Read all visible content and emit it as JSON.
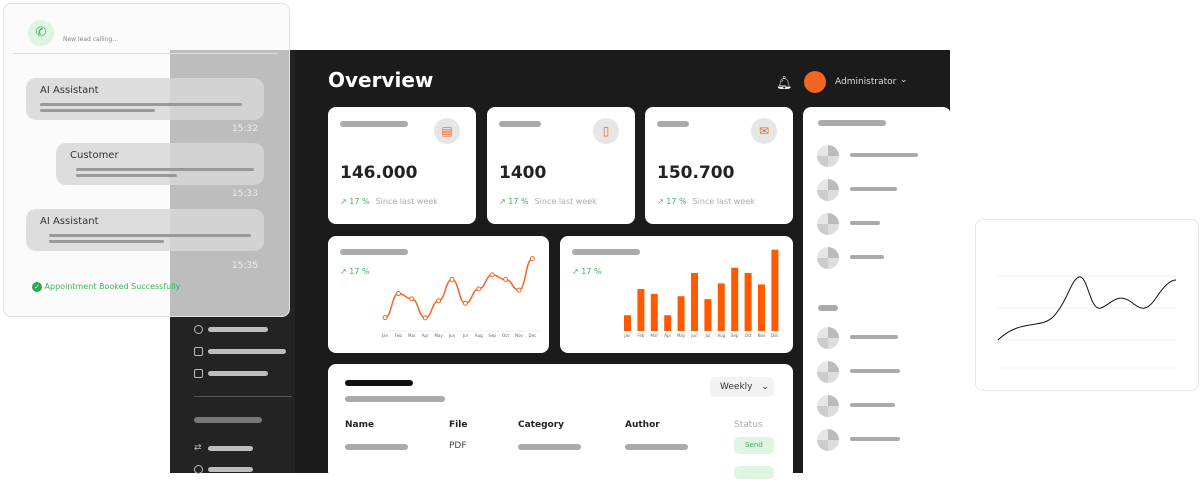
{
  "chat": {
    "status": "New lead calling...",
    "messages": [
      {
        "sender": "AI Assistant",
        "time": "15:32"
      },
      {
        "sender": "Customer",
        "time": "15:33"
      },
      {
        "sender": "AI Assistant",
        "time": "15:35"
      }
    ],
    "confirmation": "Appointment Booked Successfully"
  },
  "header": {
    "title": "Overview",
    "user": "Administrator"
  },
  "stats": [
    {
      "value": "146.000",
      "change": "17 %",
      "since": "Since last week",
      "icon": "inbox-icon"
    },
    {
      "value": "1400",
      "change": "17 %",
      "since": "Since last week",
      "icon": "notebook-icon"
    },
    {
      "value": "150.700",
      "change": "17 %",
      "since": "Since last week",
      "icon": "mail-icon"
    }
  ],
  "colors": {
    "accent": "#f26522",
    "positive": "#3cb35a",
    "panel": "#1b1b1b"
  },
  "chart_data": [
    {
      "type": "line",
      "categories": [
        "Jan",
        "Feb",
        "Mar",
        "Apr",
        "May",
        "Jun",
        "Jul",
        "Aug",
        "Sep",
        "Oct",
        "Nov",
        "Dec"
      ],
      "values": [
        43,
        120,
        103,
        42,
        97,
        165,
        89,
        135,
        180,
        165,
        131,
        232
      ],
      "change": "17 %"
    },
    {
      "type": "bar",
      "categories": [
        "Jan",
        "Feb",
        "Mar",
        "Apr",
        "May",
        "Jun",
        "Jul",
        "Aug",
        "Sep",
        "Oct",
        "Nov",
        "Dec"
      ],
      "values": [
        48,
        128,
        113,
        48,
        106,
        177,
        97,
        145,
        193,
        177,
        142,
        248
      ],
      "change": "17 %"
    }
  ],
  "table": {
    "filter": "Weekly",
    "columns": [
      "Name",
      "File",
      "Category",
      "Author",
      "Status"
    ],
    "rows": [
      {
        "file": "PDF",
        "status": "Send"
      }
    ]
  }
}
